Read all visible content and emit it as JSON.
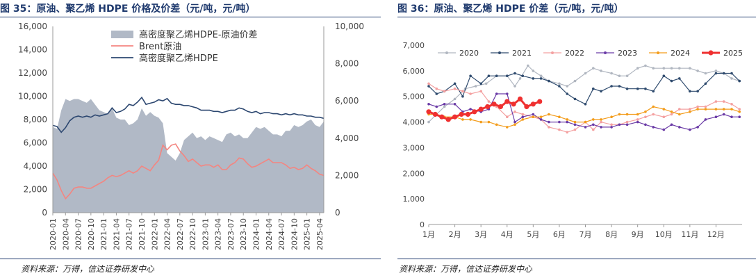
{
  "left": {
    "title": "图 35：原油、聚乙烯 HDPE 价格及价差（元/吨，元/吨）",
    "source": "资料来源：万得，信达证券研发中心"
  },
  "right": {
    "title": "图 36：原油、聚乙烯 HDPE 价差（元/吨，元/吨）",
    "source": "资料来源：万得，信达证券研发中心"
  },
  "colors": {
    "title": "#1f3a6e",
    "spread_area": "#b1b9c6",
    "brent": "#f48580",
    "hdpe": "#2c4770",
    "y2020": "#b0b6c0",
    "y2021": "#2f4b6e",
    "y2022": "#f4a0a0",
    "y2023": "#6a3aa6",
    "y2024": "#f39c1a",
    "y2025": "#ef3030"
  },
  "chart_data": [
    {
      "type": "line",
      "title": "",
      "xlabel": "",
      "ylabel": "",
      "legend_position": "top-center",
      "grid": false,
      "x_ticks": [
        "2020-01",
        "2020-04",
        "2020-07",
        "2020-10",
        "2021-01",
        "2021-04",
        "2021-07",
        "2021-10",
        "2022-01",
        "2022-04",
        "2022-07",
        "2022-10",
        "2023-01",
        "2023-04",
        "2023-07",
        "2023-10",
        "2024-01",
        "2024-04",
        "2024-07",
        "2024-10",
        "2025-01",
        "2025-04"
      ],
      "x_range": [
        "2020-01",
        "2025-05"
      ],
      "y_left": {
        "range": [
          0,
          16000
        ],
        "ticks": [
          "0",
          "2,000",
          "4,000",
          "6,000",
          "8,000",
          "10,000",
          "12,000",
          "14,000",
          "16,000"
        ]
      },
      "y_right": {
        "range": [
          0,
          10000
        ],
        "ticks": [
          "0",
          "2,000",
          "4,000",
          "6,000",
          "8,000",
          "10,000"
        ]
      },
      "series": [
        {
          "name": "高密度聚乙烯HDPE-原油价差",
          "kind": "area",
          "axis": "right",
          "x": [
            "2020-01",
            "2020-02",
            "2020-03",
            "2020-04",
            "2020-05",
            "2020-06",
            "2020-07",
            "2020-08",
            "2020-09",
            "2020-10",
            "2020-11",
            "2020-12",
            "2021-01",
            "2021-02",
            "2021-03",
            "2021-04",
            "2021-05",
            "2021-06",
            "2021-07",
            "2021-08",
            "2021-09",
            "2021-10",
            "2021-11",
            "2021-12",
            "2022-01",
            "2022-02",
            "2022-03",
            "2022-04",
            "2022-05",
            "2022-06",
            "2022-07",
            "2022-08",
            "2022-09",
            "2022-10",
            "2022-11",
            "2022-12",
            "2023-01",
            "2023-02",
            "2023-03",
            "2023-04",
            "2023-05",
            "2023-06",
            "2023-07",
            "2023-08",
            "2023-09",
            "2023-10",
            "2023-11",
            "2023-12",
            "2024-01",
            "2024-02",
            "2024-03",
            "2024-04",
            "2024-05",
            "2024-06",
            "2024-07",
            "2024-08",
            "2024-09",
            "2024-10",
            "2024-11",
            "2024-12",
            "2025-01",
            "2025-02",
            "2025-03",
            "2025-04",
            "2025-05"
          ],
          "values": [
            4600,
            4500,
            5500,
            6100,
            6000,
            6100,
            6100,
            6000,
            5900,
            6100,
            5800,
            5500,
            5400,
            5300,
            5600,
            5100,
            5000,
            5000,
            4700,
            4800,
            5000,
            5600,
            5200,
            5400,
            5200,
            5100,
            4800,
            3200,
            3000,
            2800,
            3200,
            3900,
            4100,
            4300,
            4000,
            4100,
            3900,
            4100,
            4000,
            3900,
            3800,
            4200,
            4300,
            4100,
            4200,
            4000,
            4000,
            4300,
            4600,
            4500,
            4600,
            4400,
            4200,
            4200,
            4100,
            4400,
            4400,
            4700,
            4600,
            4700,
            4900,
            5000,
            4700,
            4600,
            4900
          ]
        },
        {
          "name": "Brent原油",
          "kind": "line",
          "axis": "left",
          "x": [
            "2020-01",
            "2020-02",
            "2020-03",
            "2020-04",
            "2020-05",
            "2020-06",
            "2020-07",
            "2020-08",
            "2020-09",
            "2020-10",
            "2020-11",
            "2020-12",
            "2021-01",
            "2021-02",
            "2021-03",
            "2021-04",
            "2021-05",
            "2021-06",
            "2021-07",
            "2021-08",
            "2021-09",
            "2021-10",
            "2021-11",
            "2021-12",
            "2022-01",
            "2022-02",
            "2022-03",
            "2022-04",
            "2022-05",
            "2022-06",
            "2022-07",
            "2022-08",
            "2022-09",
            "2022-10",
            "2022-11",
            "2022-12",
            "2023-01",
            "2023-02",
            "2023-03",
            "2023-04",
            "2023-05",
            "2023-06",
            "2023-07",
            "2023-08",
            "2023-09",
            "2023-10",
            "2023-11",
            "2023-12",
            "2024-01",
            "2024-02",
            "2024-03",
            "2024-04",
            "2024-05",
            "2024-06",
            "2024-07",
            "2024-08",
            "2024-09",
            "2024-10",
            "2024-11",
            "2024-12",
            "2025-01",
            "2025-02",
            "2025-03",
            "2025-04",
            "2025-05"
          ],
          "values": [
            3400,
            2800,
            1900,
            1200,
            1600,
            2100,
            2200,
            2200,
            2100,
            2100,
            2300,
            2500,
            2700,
            3000,
            3200,
            3100,
            3200,
            3400,
            3600,
            3400,
            3600,
            4000,
            3800,
            3600,
            4100,
            4500,
            5800,
            5400,
            5800,
            5900,
            5300,
            4900,
            4400,
            4600,
            4300,
            4000,
            4100,
            4100,
            3900,
            4100,
            3700,
            3700,
            4100,
            4300,
            4700,
            4600,
            4200,
            3900,
            4000,
            4200,
            4400,
            4600,
            4300,
            4300,
            4300,
            4100,
            3800,
            3900,
            3700,
            3800,
            4100,
            3800,
            3600,
            3300,
            3200
          ]
        },
        {
          "name": "高密度聚乙烯HDPE",
          "kind": "line",
          "axis": "left",
          "x": [
            "2020-01",
            "2020-02",
            "2020-03",
            "2020-04",
            "2020-05",
            "2020-06",
            "2020-07",
            "2020-08",
            "2020-09",
            "2020-10",
            "2020-11",
            "2020-12",
            "2021-01",
            "2021-02",
            "2021-03",
            "2021-04",
            "2021-05",
            "2021-06",
            "2021-07",
            "2021-08",
            "2021-09",
            "2021-10",
            "2021-11",
            "2021-12",
            "2022-01",
            "2022-02",
            "2022-03",
            "2022-04",
            "2022-05",
            "2022-06",
            "2022-07",
            "2022-08",
            "2022-09",
            "2022-10",
            "2022-11",
            "2022-12",
            "2023-01",
            "2023-02",
            "2023-03",
            "2023-04",
            "2023-05",
            "2023-06",
            "2023-07",
            "2023-08",
            "2023-09",
            "2023-10",
            "2023-11",
            "2023-12",
            "2024-01",
            "2024-02",
            "2024-03",
            "2024-04",
            "2024-05",
            "2024-06",
            "2024-07",
            "2024-08",
            "2024-09",
            "2024-10",
            "2024-11",
            "2024-12",
            "2025-01",
            "2025-02",
            "2025-03",
            "2025-04",
            "2025-05"
          ],
          "values": [
            7500,
            7400,
            6900,
            7300,
            7900,
            8200,
            8300,
            8200,
            8300,
            8200,
            8400,
            8300,
            8400,
            8500,
            9000,
            8600,
            8700,
            8900,
            9300,
            9200,
            9500,
            9900,
            9300,
            9400,
            9500,
            9700,
            9600,
            9800,
            9400,
            9300,
            9300,
            9200,
            9200,
            9100,
            9000,
            8800,
            8800,
            8800,
            8700,
            8700,
            8600,
            8700,
            8800,
            8800,
            9000,
            8900,
            8700,
            8600,
            8700,
            8500,
            8600,
            8600,
            8500,
            8500,
            8400,
            8500,
            8400,
            8500,
            8400,
            8400,
            8300,
            8300,
            8200,
            8200,
            8100
          ]
        }
      ]
    },
    {
      "type": "line",
      "title": "",
      "xlabel": "",
      "ylabel": "",
      "legend_position": "top",
      "grid": false,
      "categories": [
        "1月",
        "2月",
        "3月",
        "4月",
        "5月",
        "6月",
        "7月",
        "8月",
        "9月",
        "10月",
        "11月",
        "12月"
      ],
      "x_range": [
        1,
        13
      ],
      "y_range": [
        0,
        7000
      ],
      "y_ticks": [
        "0",
        "1,000",
        "2,000",
        "3,000",
        "4,000",
        "5,000",
        "6,000",
        "7,000"
      ],
      "series": [
        {
          "name": "2020",
          "x": [
            1,
            1.3,
            1.6,
            2,
            2.4,
            2.8,
            3.2,
            3.6,
            4,
            4.3,
            4.5,
            4.8,
            5,
            5.3,
            5.6,
            6,
            6.3,
            6.6,
            7,
            7.3,
            7.6,
            8,
            8.3,
            8.6,
            9,
            9.3,
            9.6,
            10,
            10.3,
            10.6,
            11,
            11.3,
            11.6,
            12,
            12.3,
            12.6,
            12.9
          ],
          "values": [
            4000,
            4300,
            4600,
            4900,
            5300,
            5400,
            5500,
            5800,
            5800,
            5400,
            5700,
            6200,
            6000,
            5800,
            5600,
            5500,
            5400,
            5600,
            5900,
            6100,
            6000,
            5900,
            5800,
            5800,
            6100,
            6200,
            6100,
            6100,
            6100,
            6100,
            6100,
            6000,
            5900,
            6000,
            5900,
            5700,
            5600
          ]
        },
        {
          "name": "2021",
          "x": [
            1,
            1.3,
            1.6,
            2,
            2.3,
            2.6,
            3,
            3.3,
            3.6,
            4,
            4.3,
            4.6,
            5,
            5.3,
            5.6,
            6,
            6.3,
            6.6,
            7,
            7.3,
            7.6,
            8,
            8.3,
            8.6,
            9,
            9.3,
            9.6,
            10,
            10.3,
            10.6,
            11,
            11.3,
            11.6,
            12,
            12.3,
            12.6,
            12.9
          ],
          "values": [
            5400,
            5100,
            5200,
            5500,
            5000,
            5800,
            5500,
            5800,
            5800,
            5800,
            5900,
            5800,
            5700,
            5700,
            5600,
            5400,
            5100,
            4900,
            4700,
            5300,
            5200,
            5400,
            5400,
            5300,
            5300,
            5300,
            5200,
            5800,
            5600,
            5700,
            5200,
            5200,
            5500,
            5900,
            5900,
            5900,
            5600
          ]
        },
        {
          "name": "2022",
          "x": [
            1,
            1.3,
            1.6,
            2,
            2.3,
            2.6,
            3,
            3.3,
            3.6,
            4,
            4.3,
            4.6,
            5,
            5.3,
            5.6,
            6,
            6.3,
            6.6,
            7,
            7.3,
            7.6,
            8,
            8.3,
            8.6,
            9,
            9.3,
            9.6,
            10,
            10.3,
            10.6,
            11,
            11.3,
            11.6,
            12,
            12.3,
            12.6,
            12.9
          ],
          "values": [
            5500,
            5300,
            5200,
            5300,
            5200,
            5100,
            5200,
            4800,
            4600,
            4200,
            4400,
            4300,
            4200,
            4100,
            3800,
            3700,
            3600,
            3700,
            4000,
            3700,
            4000,
            3900,
            3900,
            4000,
            4100,
            4200,
            4300,
            4200,
            4300,
            4500,
            4500,
            4600,
            4600,
            4800,
            4800,
            4700,
            4500
          ]
        },
        {
          "name": "2023",
          "x": [
            1,
            1.3,
            1.6,
            2,
            2.3,
            2.6,
            3,
            3.3,
            3.6,
            4,
            4.3,
            4.6,
            5,
            5.3,
            5.6,
            6,
            6.3,
            6.6,
            7,
            7.3,
            7.6,
            8,
            8.3,
            8.6,
            9,
            9.3,
            9.6,
            10,
            10.3,
            10.6,
            11,
            11.3,
            11.6,
            12,
            12.3,
            12.6,
            12.9
          ],
          "values": [
            4700,
            4600,
            4700,
            4700,
            4400,
            4500,
            4400,
            4500,
            5100,
            5100,
            4000,
            4200,
            4300,
            4100,
            4000,
            4000,
            4000,
            3900,
            3800,
            3900,
            3800,
            3800,
            3900,
            3900,
            4000,
            3900,
            3800,
            3700,
            3900,
            3800,
            3700,
            3800,
            4100,
            4200,
            4300,
            4200,
            4200
          ]
        },
        {
          "name": "2024",
          "x": [
            1,
            1.3,
            1.6,
            2,
            2.3,
            2.6,
            3,
            3.3,
            3.6,
            4,
            4.3,
            4.6,
            5,
            5.3,
            5.6,
            6,
            6.3,
            6.6,
            7,
            7.3,
            7.6,
            8,
            8.3,
            8.6,
            9,
            9.3,
            9.6,
            10,
            10.3,
            10.6,
            11,
            11.3,
            11.6,
            12,
            12.3,
            12.6,
            12.9
          ],
          "values": [
            4300,
            4300,
            4200,
            4200,
            4100,
            4100,
            4000,
            4000,
            3900,
            3800,
            3900,
            4100,
            4200,
            4200,
            4300,
            4200,
            4100,
            4000,
            4000,
            4100,
            4100,
            4200,
            4300,
            4300,
            4300,
            4400,
            4600,
            4500,
            4400,
            4300,
            4400,
            4500,
            4500,
            4500,
            4500,
            4500,
            4400
          ]
        },
        {
          "name": "2025",
          "x": [
            1,
            1.25,
            1.5,
            1.75,
            2,
            2.25,
            2.5,
            2.75,
            3,
            3.25,
            3.5,
            3.75,
            4,
            4.25,
            4.5,
            4.75,
            5,
            5.25
          ],
          "values": [
            4400,
            4300,
            4200,
            4100,
            4200,
            4300,
            4300,
            4400,
            4500,
            4600,
            4700,
            4600,
            4800,
            4700,
            4900,
            4600,
            4700,
            4800
          ]
        }
      ]
    }
  ]
}
